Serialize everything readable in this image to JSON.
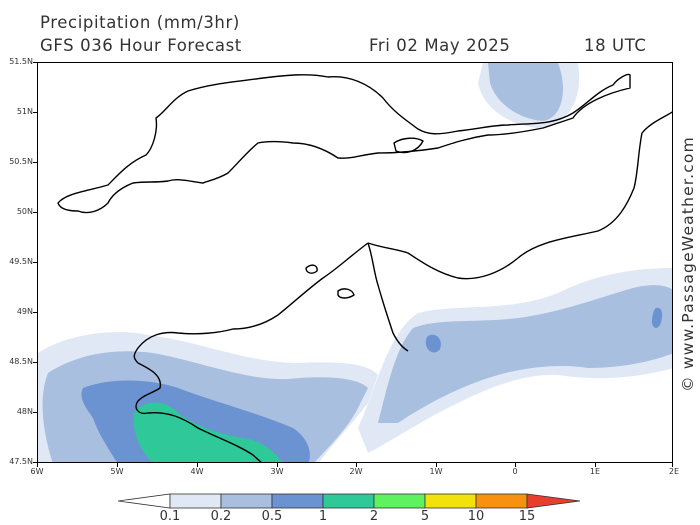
{
  "header": {
    "title": "Precipitation (mm/3hr)",
    "model_run": "GFS 036 Hour Forecast",
    "date": "Fri 02 May 2025",
    "time": "18 UTC"
  },
  "watermark": "© www.PassageWeather.com",
  "lat_labels": [
    "51.5N",
    "51N",
    "50.5N",
    "50N",
    "49.5N",
    "49N",
    "48.5N",
    "48N",
    "47.5N"
  ],
  "lon_labels": [
    "6W",
    "5W",
    "4W",
    "3W",
    "2W",
    "1W",
    "0",
    "1E",
    "2E"
  ],
  "colorbar": {
    "labels": [
      "0.1",
      "0.2",
      "0.5",
      "1",
      "2",
      "5",
      "10",
      "15"
    ],
    "colors": [
      "#ffffff",
      "#e1e8f5",
      "#a9bfe0",
      "#6b92d1",
      "#2fc999",
      "#5ff25f",
      "#f2e20c",
      "#f7910f",
      "#e83e2e"
    ]
  },
  "precip_colors": {
    "light": "#e1e8f5",
    "moderate": "#a9bfe0",
    "heavy": "#6b92d1",
    "intense": "#2fc999"
  }
}
